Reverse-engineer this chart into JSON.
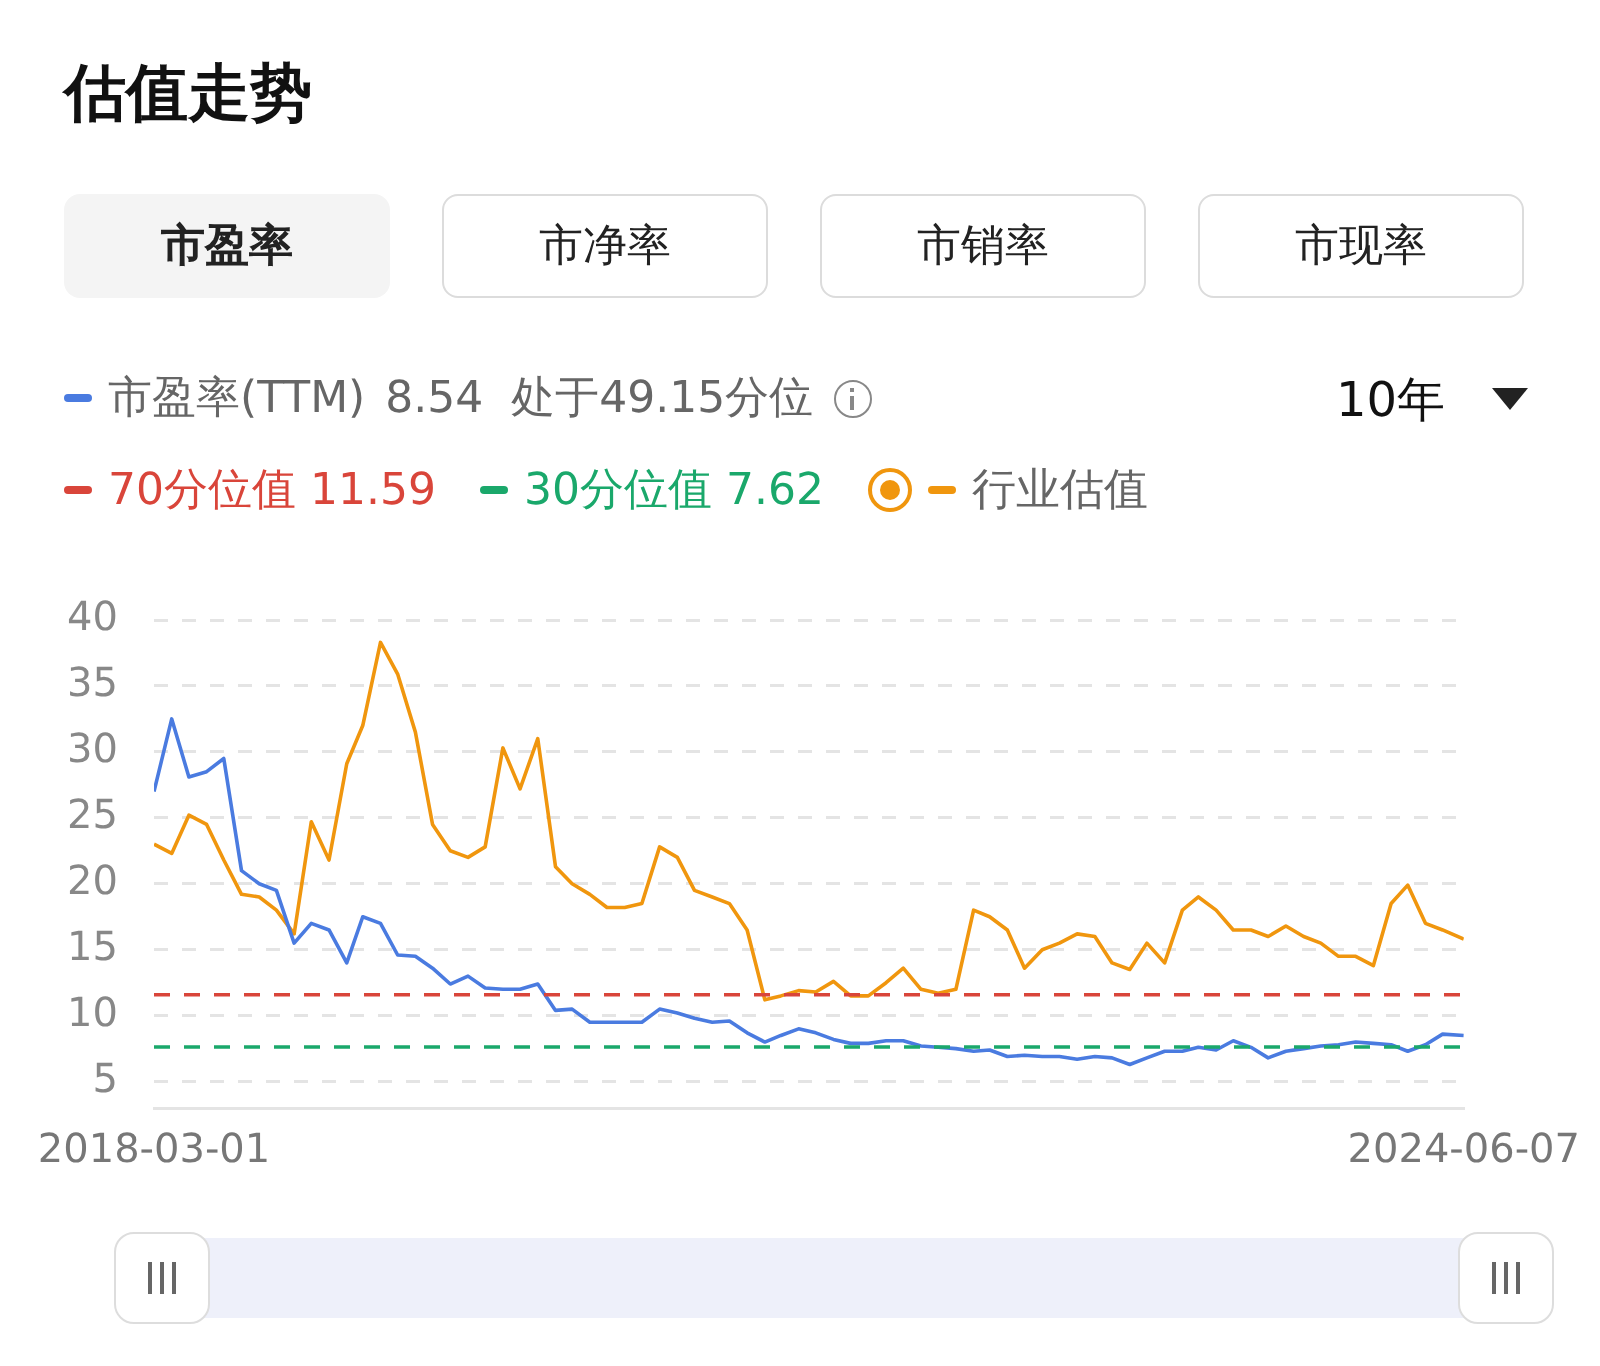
{
  "chart_data": {
    "type": "line",
    "title": "估值走势",
    "annotations": [
      "市盈率",
      "市净率",
      "市销率",
      "市现率",
      "8.54",
      "处于49.15分位",
      "10年"
    ],
    "x": [
      "2018-03-01",
      "2018-04-01",
      "2018-05-01",
      "2018-06-01",
      "2018-07-01",
      "2018-08-01",
      "2018-09-01",
      "2018-10-01",
      "2018-11-01",
      "2018-12-01",
      "2019-01-01",
      "2019-02-01",
      "2019-03-01",
      "2019-04-01",
      "2019-05-01",
      "2019-06-01",
      "2019-07-01",
      "2019-08-01",
      "2019-09-01",
      "2019-10-01",
      "2019-11-01",
      "2019-12-01",
      "2020-01-01",
      "2020-02-01",
      "2020-03-01",
      "2020-04-01",
      "2020-05-01",
      "2020-06-01",
      "2020-07-01",
      "2020-08-01",
      "2020-09-01",
      "2020-10-01",
      "2020-11-01",
      "2020-12-01",
      "2021-01-01",
      "2021-02-01",
      "2021-03-01",
      "2021-04-01",
      "2021-05-01",
      "2021-06-01",
      "2021-07-01",
      "2021-08-01",
      "2021-09-01",
      "2021-10-01",
      "2021-11-01",
      "2021-12-01",
      "2022-01-01",
      "2022-02-01",
      "2022-03-01",
      "2022-04-01",
      "2022-05-01",
      "2022-06-01",
      "2022-07-01",
      "2022-08-01",
      "2022-09-01",
      "2022-10-01",
      "2022-11-01",
      "2022-12-01",
      "2023-01-01",
      "2023-02-01",
      "2023-03-01",
      "2023-04-01",
      "2023-05-01",
      "2023-06-01",
      "2023-07-01",
      "2023-08-01",
      "2023-09-01",
      "2023-10-01",
      "2023-11-01",
      "2023-12-01",
      "2024-01-01",
      "2024-02-01",
      "2024-03-01",
      "2024-04-01",
      "2024-05-01",
      "2024-06-07"
    ],
    "series": [
      {
        "name": "市盈率(TTM)",
        "color": "#4a7be0",
        "values": [
          27,
          32.5,
          28.1,
          28.5,
          29.5,
          21,
          20,
          19.5,
          15.5,
          17,
          16.5,
          14,
          17.5,
          17,
          14.6,
          14.5,
          13.6,
          12.4,
          13,
          12.1,
          12,
          12,
          12.4,
          10.4,
          10.5,
          9.5,
          9.5,
          9.5,
          9.5,
          10.5,
          10.2,
          9.8,
          9.5,
          9.6,
          8.7,
          8,
          8.5,
          9,
          8.7,
          8.2,
          7.9,
          7.9,
          8.1,
          8.1,
          7.7,
          7.6,
          7.5,
          7.3,
          7.4,
          6.9,
          7,
          6.9,
          6.9,
          6.7,
          6.9,
          6.8,
          6.3,
          6.8,
          7.3,
          7.3,
          7.6,
          7.4,
          8.1,
          7.6,
          6.8,
          7.3,
          7.5,
          7.7,
          7.8,
          8,
          7.9,
          7.8,
          7.3,
          7.8,
          8.6,
          8.5
        ]
      },
      {
        "name": "行业估值",
        "color": "#f0960e",
        "values": [
          23,
          22.3,
          25.2,
          24.5,
          21.8,
          19.2,
          19,
          18,
          16.2,
          24.7,
          21.8,
          29.1,
          32,
          38.3,
          35.9,
          31.5,
          24.5,
          22.5,
          22,
          22.8,
          30.3,
          27.2,
          31,
          21.3,
          20,
          19.2,
          18.2,
          18.2,
          18.5,
          22.8,
          22,
          19.5,
          19,
          18.5,
          16.5,
          11.2,
          11.5,
          11.9,
          11.8,
          12.6,
          11.5,
          11.5,
          12.5,
          13.6,
          12,
          11.7,
          12,
          18,
          17.5,
          16.5,
          13.6,
          15,
          15.5,
          16.2,
          16,
          14,
          13.5,
          15.5,
          14,
          18,
          19,
          18,
          16.5,
          16.5,
          16,
          16.8,
          16,
          15.5,
          14.5,
          14.5,
          13.8,
          18.5,
          19.9,
          17,
          16.5,
          15.8
        ]
      }
    ],
    "ref_lines": [
      {
        "axis": "y",
        "value": 11.59,
        "label": "70分位值 11.59",
        "color": "#d9453a",
        "line_style": "dashed"
      },
      {
        "axis": "y",
        "value": 7.62,
        "label": "30分位值 7.62",
        "color": "#1aa86b",
        "line_style": "dashed"
      }
    ],
    "xlim": [
      "2018-03-01",
      "2024-06-07"
    ],
    "xticks": [
      "2018-03-01",
      "2024-06-07"
    ],
    "ylim": [
      3,
      40
    ],
    "yticks": [
      5,
      10,
      15,
      20,
      25,
      30,
      35,
      40
    ],
    "grid": "y",
    "legend": "top left",
    "marker": "none",
    "line_style": "solid"
  }
}
